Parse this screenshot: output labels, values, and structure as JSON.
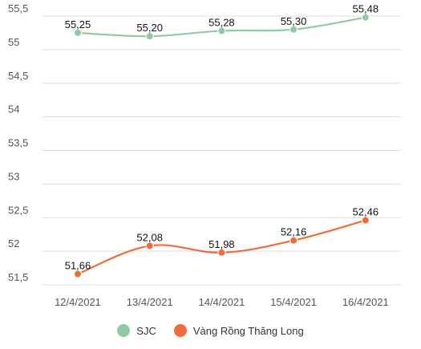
{
  "chart_data": {
    "type": "line",
    "title": "",
    "xlabel": "",
    "ylabel": "",
    "categories": [
      "12/4/2021",
      "13/4/2021",
      "14/4/2021",
      "15/4/2021",
      "16/4/2021"
    ],
    "series": [
      {
        "name": "SJC",
        "color": "#8fcaa3",
        "values": [
          55.25,
          55.2,
          55.28,
          55.3,
          55.48
        ],
        "labels": [
          "55,25",
          "55,20",
          "55,28",
          "55,30",
          "55,48"
        ]
      },
      {
        "name": "Vàng Rồng Thăng Long",
        "color": "#f26b3a",
        "values": [
          51.66,
          52.08,
          51.98,
          52.16,
          52.46
        ],
        "labels": [
          "51,66",
          "52,08",
          "51,98",
          "52,16",
          "52,46"
        ]
      }
    ],
    "ylim": [
      51.5,
      55.5
    ],
    "yticks": [
      51.5,
      52,
      52.5,
      53,
      53.5,
      54,
      54.5,
      55,
      55.5
    ],
    "ytick_labels": [
      "51,5",
      "52",
      "52,5",
      "53",
      "53,5",
      "54",
      "54,5",
      "55",
      "55,5"
    ],
    "grid": true,
    "legend_position": "bottom"
  }
}
